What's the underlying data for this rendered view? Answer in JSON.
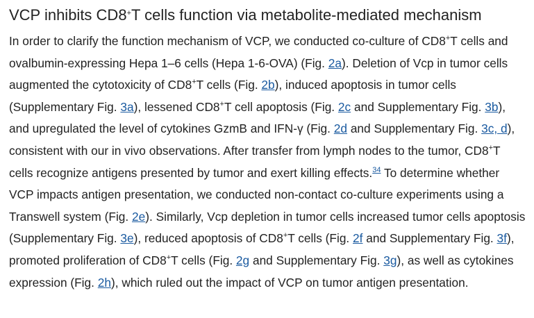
{
  "heading": {
    "segments": [
      {
        "text": "VCP inhibits CD8"
      },
      {
        "sup": "+"
      },
      {
        "text": "T cells function via metabolite-mediated mechanism"
      }
    ]
  },
  "paragraph": {
    "segments": [
      {
        "text": "In order to clarify the function mechanism of VCP, we conducted co-culture of CD8"
      },
      {
        "sup": "+"
      },
      {
        "text": "T cells and ovalbumin-expressing Hepa 1–6 cells (Hepa 1-6-OVA) (Fig. "
      },
      {
        "link": "2a"
      },
      {
        "text": "). Deletion of Vcp in tumor cells augmented the cytotoxicity of CD8"
      },
      {
        "sup": "+"
      },
      {
        "text": "T cells (Fig. "
      },
      {
        "link": "2b"
      },
      {
        "text": "), induced apoptosis in tumor cells (Supplementary Fig. "
      },
      {
        "link": "3a"
      },
      {
        "text": "), lessened CD8"
      },
      {
        "sup": "+"
      },
      {
        "text": "T cell apoptosis (Fig. "
      },
      {
        "link": "2c"
      },
      {
        "text": " and Supplementary Fig. "
      },
      {
        "link": "3b"
      },
      {
        "text": "), and upregulated the level of cytokines GzmB and IFN-γ (Fig. "
      },
      {
        "link": "2d"
      },
      {
        "text": " and Supplementary Fig. "
      },
      {
        "link": "3c, d"
      },
      {
        "text": "), consistent with our in vivo observations. After transfer from lymph nodes to the tumor, CD8"
      },
      {
        "sup": "+"
      },
      {
        "text": "T cells recognize antigens presented by tumor and exert killing effects."
      },
      {
        "sup_link": "34"
      },
      {
        "text": " To determine whether VCP impacts antigen presentation, we conducted non-contact co-culture experiments using a Transwell system (Fig. "
      },
      {
        "link": "2e"
      },
      {
        "text": "). Similarly, Vcp depletion in tumor cells increased tumor cells apoptosis (Supplementary Fig. "
      },
      {
        "link": "3e"
      },
      {
        "text": "), reduced apoptosis of CD8"
      },
      {
        "sup": "+"
      },
      {
        "text": "T cells (Fig. "
      },
      {
        "link": "2f"
      },
      {
        "text": " and Supplementary Fig. "
      },
      {
        "link": "3f"
      },
      {
        "text": "), promoted proliferation of CD8"
      },
      {
        "sup": "+"
      },
      {
        "text": "T cells (Fig. "
      },
      {
        "link": "2g"
      },
      {
        "text": " and Supplementary Fig. "
      },
      {
        "link": "3g"
      },
      {
        "text": "), as well as cytokines expression (Fig. "
      },
      {
        "link": "2h"
      },
      {
        "text": "), which ruled out the impact of VCP on tumor antigen presentation."
      }
    ]
  }
}
